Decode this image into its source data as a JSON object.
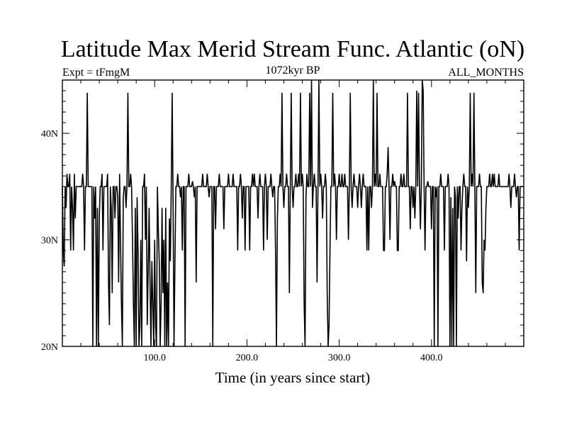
{
  "chart_data": {
    "type": "line",
    "title": "Latitude Max Merid Stream Func. Atlantic (oN)",
    "subtitle_left": "Expt = tFmgM",
    "subtitle_center": "1072kyr BP",
    "subtitle_right": "ALL_MONTHS",
    "xlabel": "Time (in years since start)",
    "ylabel": "",
    "xlim": [
      0,
      500
    ],
    "ylim": [
      20,
      45
    ],
    "x_ticks": [
      100,
      200,
      300,
      400
    ],
    "x_tick_labels": [
      "100.0",
      "200.0",
      "300.0",
      "400.0"
    ],
    "y_ticks": [
      20,
      30,
      40
    ],
    "y_tick_labels": [
      "20N",
      "30N",
      "40N"
    ],
    "grid": false,
    "baseline": 35,
    "excursions": [
      [
        1,
        29
      ],
      [
        2,
        27.5
      ],
      [
        4,
        33
      ],
      [
        5,
        36.2
      ],
      [
        7,
        35
      ],
      [
        8,
        36.2
      ],
      [
        9,
        29
      ],
      [
        10,
        35
      ],
      [
        11,
        33
      ],
      [
        12,
        29
      ],
      [
        13,
        36.2
      ],
      [
        14,
        32
      ],
      [
        22,
        36.2
      ],
      [
        24,
        29
      ],
      [
        27,
        43.8
      ],
      [
        30,
        35
      ],
      [
        33,
        20
      ],
      [
        35,
        32
      ],
      [
        37,
        20
      ],
      [
        38,
        33
      ],
      [
        39,
        20
      ],
      [
        40,
        32
      ],
      [
        43,
        36.2
      ],
      [
        44,
        29
      ],
      [
        47,
        35
      ],
      [
        49,
        36.2
      ],
      [
        50,
        26
      ],
      [
        51,
        22
      ],
      [
        53,
        33
      ],
      [
        54,
        25
      ],
      [
        56,
        35
      ],
      [
        57,
        32
      ],
      [
        59,
        35
      ],
      [
        60,
        34
      ],
      [
        61,
        26
      ],
      [
        62,
        36.2
      ],
      [
        63,
        30
      ],
      [
        64,
        24
      ],
      [
        65,
        20
      ],
      [
        66,
        34
      ],
      [
        69,
        33
      ],
      [
        71,
        43.8
      ],
      [
        72,
        35
      ],
      [
        74,
        36.2
      ],
      [
        76,
        30
      ],
      [
        77,
        24
      ],
      [
        78,
        20
      ],
      [
        79,
        33
      ],
      [
        80,
        20
      ],
      [
        81,
        34
      ],
      [
        82,
        29
      ],
      [
        83,
        20
      ],
      [
        84,
        22
      ],
      [
        85,
        30
      ],
      [
        86,
        20
      ],
      [
        88,
        35
      ],
      [
        89,
        36.2
      ],
      [
        90,
        30
      ],
      [
        92,
        22
      ],
      [
        93,
        27
      ],
      [
        94,
        33
      ],
      [
        95,
        26
      ],
      [
        96,
        20
      ],
      [
        97,
        28
      ],
      [
        98,
        24
      ],
      [
        99,
        20
      ],
      [
        100,
        30
      ],
      [
        101,
        22
      ],
      [
        102,
        20
      ],
      [
        103,
        35
      ],
      [
        104,
        31
      ],
      [
        105,
        28
      ],
      [
        106,
        20
      ],
      [
        107,
        24
      ],
      [
        108,
        33
      ],
      [
        109,
        25
      ],
      [
        110,
        30
      ],
      [
        111,
        20
      ],
      [
        112,
        33
      ],
      [
        113,
        20
      ],
      [
        114,
        26
      ],
      [
        115,
        20
      ],
      [
        116,
        32
      ],
      [
        117,
        28
      ],
      [
        118,
        35
      ],
      [
        119,
        43.8
      ],
      [
        120,
        33
      ],
      [
        121,
        20
      ],
      [
        122,
        28
      ],
      [
        125,
        36.2
      ],
      [
        128,
        34
      ],
      [
        130,
        29
      ],
      [
        133,
        20
      ],
      [
        136,
        35
      ],
      [
        137,
        36.2
      ],
      [
        140,
        35
      ],
      [
        141,
        35.5
      ],
      [
        143,
        34
      ],
      [
        145,
        26
      ],
      [
        149,
        35
      ],
      [
        152,
        36.2
      ],
      [
        156,
        35
      ],
      [
        157,
        36.2
      ],
      [
        159,
        34
      ],
      [
        163,
        20
      ],
      [
        166,
        31
      ],
      [
        168,
        35
      ],
      [
        170,
        36.2
      ],
      [
        172,
        35
      ],
      [
        175,
        31
      ],
      [
        177,
        35
      ],
      [
        180,
        36.2
      ],
      [
        181,
        35
      ],
      [
        184,
        35
      ],
      [
        185,
        36.2
      ],
      [
        187,
        35
      ],
      [
        190,
        29
      ],
      [
        191,
        35
      ],
      [
        193,
        36.2
      ],
      [
        195,
        32
      ],
      [
        198,
        29
      ],
      [
        200,
        35
      ],
      [
        203,
        29
      ],
      [
        206,
        36.2
      ],
      [
        207,
        35
      ],
      [
        208,
        36.2
      ],
      [
        210,
        35
      ],
      [
        212,
        32
      ],
      [
        214,
        36.2
      ],
      [
        218,
        29
      ],
      [
        220,
        36.2
      ],
      [
        222,
        30
      ],
      [
        226,
        36.2
      ],
      [
        228,
        34
      ],
      [
        231,
        29
      ],
      [
        232,
        20
      ],
      [
        233,
        32
      ],
      [
        236,
        36.2
      ],
      [
        238,
        43.8
      ],
      [
        240,
        33
      ],
      [
        243,
        36.2
      ],
      [
        246,
        25
      ],
      [
        248,
        43.8
      ],
      [
        250,
        33
      ],
      [
        253,
        36.2
      ],
      [
        256,
        36.2
      ],
      [
        258,
        43.8
      ],
      [
        260,
        36.2
      ],
      [
        262,
        24
      ],
      [
        263,
        20
      ],
      [
        264,
        34
      ],
      [
        265,
        36.2
      ],
      [
        268,
        43.8
      ],
      [
        270,
        45
      ],
      [
        271,
        33
      ],
      [
        273,
        36.2
      ],
      [
        276,
        26
      ],
      [
        278,
        45
      ],
      [
        280,
        36.2
      ],
      [
        282,
        32
      ],
      [
        285,
        36.2
      ],
      [
        287,
        25
      ],
      [
        288,
        20
      ],
      [
        289,
        22
      ],
      [
        290,
        29
      ],
      [
        293,
        43.8
      ],
      [
        295,
        36.2
      ],
      [
        297,
        30
      ],
      [
        300,
        36.2
      ],
      [
        303,
        36.2
      ],
      [
        306,
        36.2
      ],
      [
        310,
        30
      ],
      [
        312,
        43.8
      ],
      [
        314,
        33
      ],
      [
        316,
        36.2
      ],
      [
        320,
        33
      ],
      [
        322,
        36.2
      ],
      [
        324,
        33
      ],
      [
        326,
        36.2
      ],
      [
        330,
        29
      ],
      [
        332,
        29
      ],
      [
        335,
        33
      ],
      [
        337,
        45
      ],
      [
        339,
        36.2
      ],
      [
        341,
        43.8
      ],
      [
        344,
        36.2
      ],
      [
        348,
        29
      ],
      [
        349,
        29
      ],
      [
        352,
        36.2
      ],
      [
        353,
        38.7
      ],
      [
        355,
        30
      ],
      [
        358,
        36.2
      ],
      [
        360,
        35.5
      ],
      [
        363,
        29
      ],
      [
        364,
        29
      ],
      [
        367,
        36.2
      ],
      [
        370,
        36.2
      ],
      [
        374,
        43.8
      ],
      [
        377,
        31
      ],
      [
        380,
        33
      ],
      [
        382,
        32
      ],
      [
        384,
        44
      ],
      [
        386,
        43.8
      ],
      [
        388,
        31
      ],
      [
        390,
        45
      ],
      [
        391,
        44
      ],
      [
        393,
        29
      ],
      [
        396,
        35.5
      ],
      [
        400,
        31
      ],
      [
        403,
        20
      ],
      [
        405,
        34
      ],
      [
        407,
        20
      ],
      [
        410,
        36.2
      ],
      [
        414,
        29
      ],
      [
        418,
        36.2
      ],
      [
        420,
        20
      ],
      [
        421,
        34
      ],
      [
        422,
        20
      ],
      [
        423,
        33
      ],
      [
        424,
        20
      ],
      [
        426,
        34
      ],
      [
        427,
        20
      ],
      [
        429,
        32
      ],
      [
        432,
        29
      ],
      [
        433,
        33
      ],
      [
        435,
        36.2
      ],
      [
        438,
        28
      ],
      [
        440,
        33
      ],
      [
        442,
        43.8
      ],
      [
        444,
        36.2
      ],
      [
        446,
        43.8
      ],
      [
        448,
        25
      ],
      [
        452,
        36.2
      ],
      [
        455,
        26
      ],
      [
        456,
        25
      ],
      [
        457,
        30
      ],
      [
        458,
        29
      ],
      [
        459,
        33
      ],
      [
        463,
        36.2
      ],
      [
        466,
        36.2
      ],
      [
        468,
        36.2
      ],
      [
        473,
        36.2
      ],
      [
        478,
        35
      ],
      [
        484,
        36.2
      ],
      [
        486,
        33
      ],
      [
        490,
        36.2
      ],
      [
        492,
        34
      ],
      [
        495,
        29
      ],
      [
        499,
        35
      ]
    ]
  }
}
